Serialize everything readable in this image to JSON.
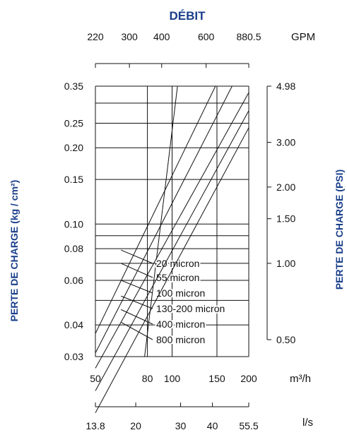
{
  "chart_data": {
    "type": "line",
    "title": "DÉBIT",
    "ylabel_left": "PERTE DE CHARGE (kg / cm²)",
    "ylabel_right": "PERTE DE CHARGE (PSI)",
    "x_unit_main": "m³/h",
    "x_unit_top": "GPM",
    "x_unit_bottom": "l/s",
    "x_scale": "log",
    "y_scale": "log",
    "xlim": [
      50,
      200
    ],
    "ylim": [
      0.03,
      0.35
    ],
    "grid": true,
    "x_ticks": [
      {
        "value": 50,
        "label": "50"
      },
      {
        "value": 80,
        "label": "80"
      },
      {
        "value": 100,
        "label": "100"
      },
      {
        "value": 150,
        "label": "150"
      },
      {
        "value": 200,
        "label": "200"
      }
    ],
    "top_ticks": [
      {
        "value": 50,
        "label": "220"
      },
      {
        "value": 68,
        "label": "300"
      },
      {
        "value": 91,
        "label": "400"
      },
      {
        "value": 136,
        "label": "600"
      },
      {
        "value": 200,
        "label": "880.5"
      }
    ],
    "bottom_ticks": [
      {
        "value": 50,
        "label": "13.8"
      },
      {
        "value": 72,
        "label": "20"
      },
      {
        "value": 108,
        "label": "30"
      },
      {
        "value": 144,
        "label": "40"
      },
      {
        "value": 200,
        "label": "55.5"
      }
    ],
    "y_ticks": [
      {
        "value": 0.03,
        "label": "0.03"
      },
      {
        "value": 0.04,
        "label": "0.04"
      },
      {
        "value": 0.06,
        "label": "0.06"
      },
      {
        "value": 0.08,
        "label": "0.08"
      },
      {
        "value": 0.1,
        "label": "0.10"
      },
      {
        "value": 0.15,
        "label": "0.15"
      },
      {
        "value": 0.2,
        "label": "0.20"
      },
      {
        "value": 0.25,
        "label": "0.25"
      },
      {
        "value": 0.35,
        "label": "0.35"
      }
    ],
    "y_grid_extra": [
      0.05,
      0.07,
      0.09,
      0.3
    ],
    "right_ticks": [
      {
        "value": 0.035,
        "label": "0.50"
      },
      {
        "value": 0.07,
        "label": "1.00"
      },
      {
        "value": 0.105,
        "label": "1.50"
      },
      {
        "value": 0.14,
        "label": "2.00"
      },
      {
        "value": 0.21,
        "label": "3.00"
      },
      {
        "value": 0.35,
        "label": "4.98"
      }
    ],
    "series": [
      {
        "name": "20 micron",
        "x": [
          78,
          105
        ],
        "y": [
          0.03,
          0.35
        ],
        "label_at": [
          63,
          0.079
        ]
      },
      {
        "name": "55 micron",
        "x": [
          50,
          148
        ],
        "y": [
          0.037,
          0.35
        ],
        "label_at": [
          63,
          0.07
        ]
      },
      {
        "name": "100 micron",
        "x": [
          50,
          172
        ],
        "y": [
          0.031,
          0.35
        ],
        "label_at": [
          63,
          0.06
        ]
      },
      {
        "name": "130-200 micron",
        "x": [
          50,
          200
        ],
        "y": [
          0.027,
          0.33
        ],
        "label_at": [
          63,
          0.052
        ]
      },
      {
        "name": "400 micron",
        "x": [
          50,
          200
        ],
        "y": [
          0.022,
          0.28
        ],
        "label_at": [
          63,
          0.046
        ]
      },
      {
        "name": "800 micron",
        "x": [
          50,
          200
        ],
        "y": [
          0.018,
          0.24
        ],
        "label_at": [
          63,
          0.041
        ]
      }
    ]
  }
}
